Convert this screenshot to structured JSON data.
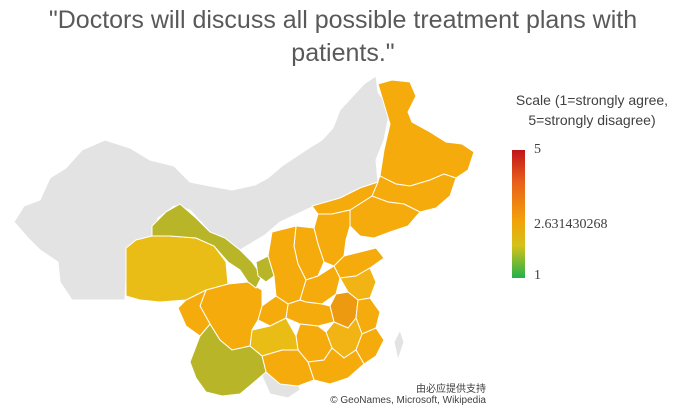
{
  "title": "\"Doctors will discuss all possible treatment plans with patients.\"",
  "legend": {
    "title": "Scale (1=strongly agree, 5=strongly disagree)",
    "max_label": "5",
    "mid_label": "2.631430268",
    "min_label": "1",
    "colors": [
      "#c0141a",
      "#f3a10a",
      "#22b14c"
    ]
  },
  "attribution": {
    "line1": "由必应提供支持",
    "line2": "© GeoNames, Microsoft, Wikipedia"
  },
  "colors": {
    "no_data": "#e3e3e3",
    "orange": "#f5ab0c",
    "light_orange": "#f2b314",
    "dark_orange": "#ee9a10",
    "yellow": "#e9bd16",
    "olive": "#b8b628",
    "border": "#ffffff"
  }
}
